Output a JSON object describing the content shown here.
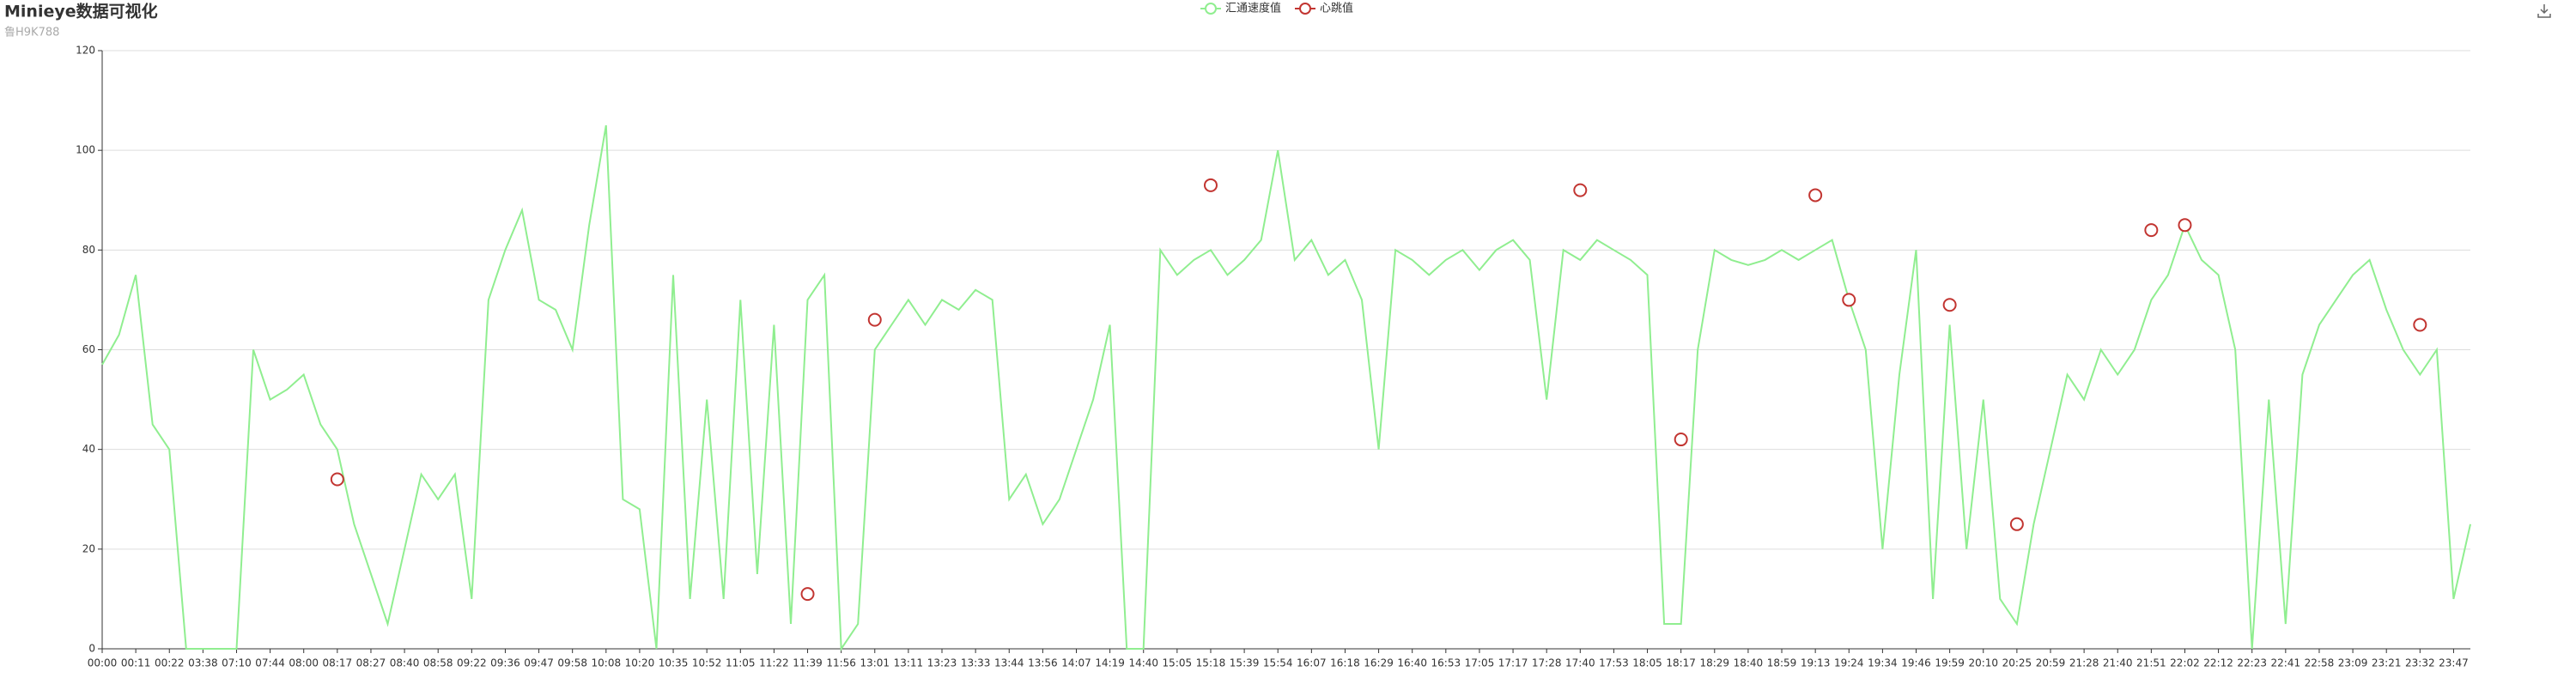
{
  "chart_data": {
    "type": "line",
    "title": "Minieye数据可视化",
    "subtitle": "鲁H9K788",
    "categories": [
      "00:00",
      null,
      "00:11",
      null,
      "00:22",
      null,
      "03:38",
      null,
      "07:10",
      null,
      "07:44",
      null,
      "08:00",
      null,
      "08:17",
      null,
      "08:27",
      null,
      "08:40",
      null,
      "08:58",
      null,
      "09:22",
      null,
      "09:36",
      null,
      "09:47",
      null,
      "09:58",
      null,
      "10:08",
      null,
      "10:20",
      null,
      "10:35",
      null,
      "10:52",
      null,
      "11:05",
      null,
      "11:22",
      null,
      "11:39",
      null,
      "11:56",
      null,
      "13:01",
      null,
      "13:11",
      null,
      "13:23",
      null,
      "13:33",
      null,
      "13:44",
      null,
      "13:56",
      null,
      "14:07",
      null,
      "14:19",
      null,
      "14:40",
      null,
      "15:05",
      null,
      "15:18",
      null,
      "15:39",
      null,
      "15:54",
      null,
      "16:07",
      null,
      "16:18",
      null,
      "16:29",
      null,
      "16:40",
      null,
      "16:53",
      null,
      "17:05",
      null,
      "17:17",
      null,
      "17:28",
      null,
      "17:40",
      null,
      "17:53",
      null,
      "18:05",
      null,
      "18:17",
      null,
      "18:29",
      null,
      "18:40",
      null,
      "18:59",
      null,
      "19:13",
      null,
      "19:24",
      null,
      "19:34",
      null,
      "19:46",
      null,
      "19:59",
      null,
      "20:10",
      null,
      "20:25",
      null,
      "20:59",
      null,
      "21:28",
      null,
      "21:40",
      null,
      "21:51",
      null,
      "22:02",
      null,
      "22:12",
      null,
      "22:23",
      null,
      "22:41",
      null,
      "22:58",
      null,
      "23:09",
      null,
      "23:21",
      null,
      "23:32",
      null,
      "23:47",
      null
    ],
    "series": [
      {
        "name": "汇通速度值",
        "color": "#90ee90",
        "marker": "none",
        "values": [
          57,
          63,
          75,
          45,
          40,
          0,
          0,
          0,
          0,
          60,
          50,
          52,
          55,
          45,
          40,
          25,
          15,
          5,
          20,
          35,
          30,
          35,
          10,
          70,
          80,
          88,
          70,
          68,
          60,
          85,
          105,
          30,
          28,
          0,
          75,
          10,
          50,
          10,
          70,
          15,
          65,
          5,
          70,
          75,
          0,
          5,
          60,
          65,
          70,
          65,
          70,
          68,
          72,
          70,
          30,
          35,
          25,
          30,
          40,
          50,
          65,
          0,
          0,
          80,
          75,
          78,
          80,
          75,
          78,
          82,
          100,
          78,
          82,
          75,
          78,
          70,
          40,
          80,
          78,
          75,
          78,
          80,
          76,
          80,
          82,
          78,
          50,
          80,
          78,
          82,
          80,
          78,
          75,
          5,
          5,
          60,
          80,
          78,
          77,
          78,
          80,
          78,
          80,
          82,
          70,
          60,
          20,
          55,
          80,
          10,
          65,
          20,
          50,
          10,
          5,
          25,
          40,
          55,
          50,
          60,
          55,
          60,
          70,
          75,
          85,
          78,
          75,
          60,
          0,
          50,
          5,
          55,
          65,
          70,
          75,
          78,
          68,
          60,
          55,
          60,
          10,
          25
        ]
      },
      {
        "name": "心跳值",
        "color": "#c23531",
        "marker": "circle",
        "values": [
          null,
          null,
          null,
          null,
          null,
          null,
          null,
          null,
          null,
          null,
          null,
          null,
          null,
          null,
          34,
          null,
          null,
          null,
          null,
          null,
          null,
          null,
          null,
          null,
          null,
          null,
          null,
          null,
          null,
          null,
          null,
          null,
          null,
          null,
          null,
          null,
          null,
          null,
          null,
          null,
          null,
          null,
          11,
          null,
          null,
          null,
          66,
          null,
          null,
          null,
          null,
          null,
          null,
          null,
          null,
          null,
          null,
          null,
          null,
          null,
          null,
          null,
          null,
          null,
          null,
          null,
          93,
          null,
          null,
          null,
          null,
          null,
          null,
          null,
          null,
          null,
          null,
          null,
          null,
          null,
          null,
          null,
          null,
          null,
          null,
          null,
          null,
          null,
          92,
          null,
          null,
          null,
          null,
          null,
          42,
          null,
          null,
          null,
          null,
          null,
          null,
          null,
          91,
          null,
          70,
          null,
          null,
          null,
          null,
          null,
          69,
          null,
          null,
          null,
          25,
          null,
          null,
          null,
          null,
          null,
          null,
          null,
          84,
          null,
          85,
          null,
          null,
          null,
          null,
          null,
          null,
          null,
          null,
          null,
          null,
          null,
          null,
          null,
          65,
          null,
          null,
          null
        ]
      }
    ],
    "ylim": [
      0,
      120
    ],
    "yticks": [
      0,
      20,
      40,
      60,
      80,
      100,
      120
    ],
    "grid": true,
    "legend": "top"
  }
}
